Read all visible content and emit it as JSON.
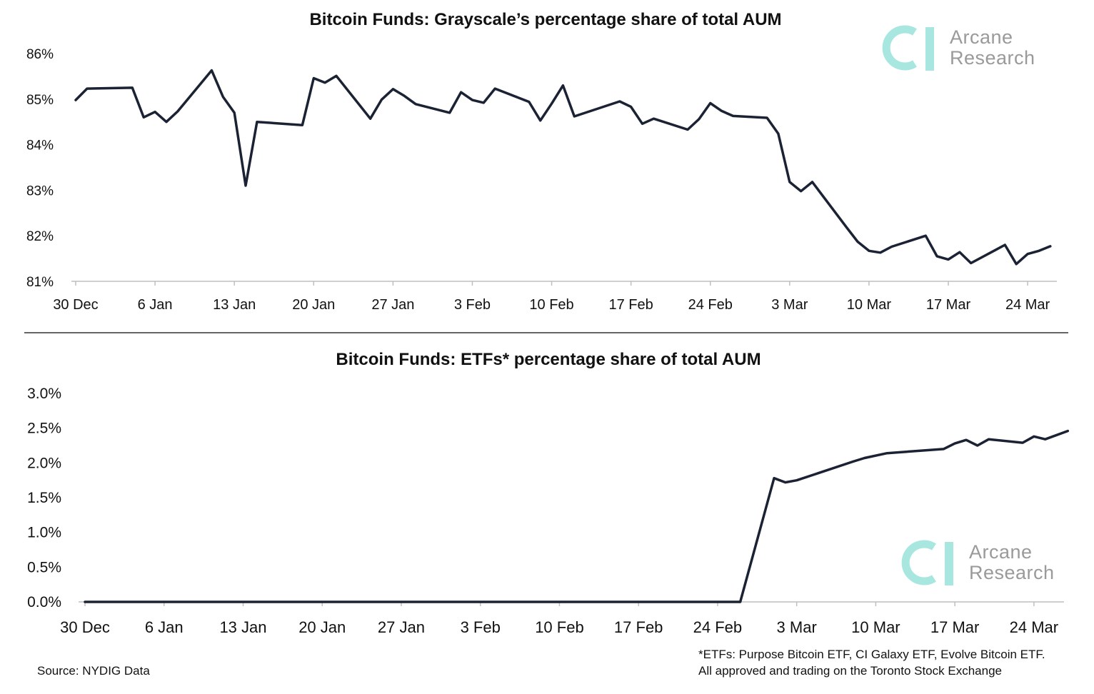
{
  "source": "Source: NYDIG Data",
  "footnote": {
    "line1": "*ETFs: Purpose Bitcoin ETF, CI Galaxy ETF, Evolve Bitcoin ETF.",
    "line2": "All approved and trading on the Toronto Stock Exchange"
  },
  "logo": {
    "line1": "Arcane",
    "line2": "Research",
    "color": "#a8e6e0"
  },
  "colors": {
    "line": "#1a2233",
    "axis": "#bfbfbf"
  },
  "chart_data": [
    {
      "type": "line",
      "title": "Bitcoin Funds: Grayscale’s percentage share of total AUM",
      "xlabel": "",
      "ylabel": "",
      "ylim": [
        81,
        86
      ],
      "yticks": [
        "81%",
        "82%",
        "83%",
        "84%",
        "85%",
        "86%"
      ],
      "xticks": [
        "30 Dec",
        "6 Jan",
        "13 Jan",
        "20 Jan",
        "27 Jan",
        "3 Feb",
        "10 Feb",
        "17 Feb",
        "24 Feb",
        "3 Mar",
        "10 Mar",
        "17 Mar",
        "24 Mar"
      ],
      "grid": false,
      "series": [
        {
          "x": [
            "2020-12-30",
            "2020-12-31",
            "2021-01-04",
            "2021-01-05",
            "2021-01-06",
            "2021-01-07",
            "2021-01-08",
            "2021-01-11",
            "2021-01-12",
            "2021-01-13",
            "2021-01-14",
            "2021-01-15",
            "2021-01-19",
            "2021-01-20",
            "2021-01-21",
            "2021-01-22",
            "2021-01-25",
            "2021-01-26",
            "2021-01-27",
            "2021-01-28",
            "2021-01-29",
            "2021-02-01",
            "2021-02-02",
            "2021-02-03",
            "2021-02-04",
            "2021-02-05",
            "2021-02-08",
            "2021-02-09",
            "2021-02-10",
            "2021-02-11",
            "2021-02-12",
            "2021-02-16",
            "2021-02-17",
            "2021-02-18",
            "2021-02-19",
            "2021-02-22",
            "2021-02-23",
            "2021-02-24",
            "2021-02-25",
            "2021-02-26",
            "2021-03-01",
            "2021-03-02",
            "2021-03-03",
            "2021-03-04",
            "2021-03-05",
            "2021-03-08",
            "2021-03-09",
            "2021-03-10",
            "2021-03-11",
            "2021-03-12",
            "2021-03-15",
            "2021-03-16",
            "2021-03-17",
            "2021-03-18",
            "2021-03-19",
            "2021-03-22",
            "2021-03-23",
            "2021-03-24",
            "2021-03-25",
            "2021-03-26"
          ],
          "values": [
            84.98,
            85.23,
            85.25,
            84.6,
            84.72,
            84.5,
            84.73,
            85.63,
            85.05,
            84.7,
            83.1,
            84.5,
            84.43,
            85.46,
            85.36,
            85.51,
            84.57,
            84.99,
            85.22,
            85.07,
            84.89,
            84.7,
            85.15,
            84.98,
            84.92,
            85.23,
            84.94,
            84.53,
            84.9,
            85.3,
            84.62,
            84.95,
            84.83,
            84.46,
            84.57,
            84.33,
            84.56,
            84.91,
            84.74,
            84.63,
            84.59,
            84.24,
            83.18,
            82.98,
            83.18,
            82.19,
            81.87,
            81.67,
            81.63,
            81.76,
            82.0,
            81.55,
            81.48,
            81.64,
            81.4,
            81.8,
            81.38,
            81.6,
            81.67,
            81.77
          ]
        }
      ]
    },
    {
      "type": "line",
      "title": "Bitcoin Funds: ETFs* percentage share of total AUM",
      "xlabel": "",
      "ylabel": "",
      "ylim": [
        0,
        3
      ],
      "yticks": [
        "0.0%",
        "0.5%",
        "1.0%",
        "1.5%",
        "2.0%",
        "2.5%",
        "3.0%"
      ],
      "xticks": [
        "30 Dec",
        "6 Jan",
        "13 Jan",
        "20 Jan",
        "27 Jan",
        "3 Feb",
        "10 Feb",
        "17 Feb",
        "24 Feb",
        "3 Mar",
        "10 Mar",
        "17 Mar",
        "24 Mar"
      ],
      "grid": false,
      "series": [
        {
          "x": [
            "2020-12-30",
            "2021-02-26",
            "2021-03-01",
            "2021-03-02",
            "2021-03-03",
            "2021-03-08",
            "2021-03-09",
            "2021-03-11",
            "2021-03-16",
            "2021-03-17",
            "2021-03-18",
            "2021-03-19",
            "2021-03-20",
            "2021-03-23",
            "2021-03-24",
            "2021-03-25",
            "2021-03-27"
          ],
          "values": [
            0.0,
            0.0,
            1.78,
            1.72,
            1.75,
            2.02,
            2.07,
            2.14,
            2.2,
            2.28,
            2.33,
            2.25,
            2.34,
            2.29,
            2.38,
            2.34,
            2.46
          ]
        }
      ]
    }
  ]
}
